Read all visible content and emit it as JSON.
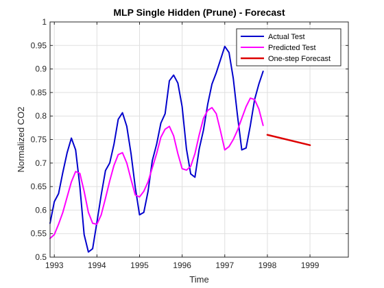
{
  "chart_data": {
    "type": "line",
    "title": "MLP Single Hidden (Prune) - Forecast",
    "xlabel": "Time",
    "ylabel": "Normalized CO2",
    "xlim": [
      1992.9,
      1999.9
    ],
    "ylim": [
      0.5,
      1.0
    ],
    "grid": true,
    "legend_position": "top-right",
    "xticks": [
      1993,
      1994,
      1995,
      1996,
      1997,
      1998,
      1999
    ],
    "xtick_labels": [
      "1993",
      "1994",
      "1995",
      "1996",
      "1997",
      "1998",
      "1999"
    ],
    "yticks": [
      0.5,
      0.55,
      0.6,
      0.65,
      0.7,
      0.75,
      0.8,
      0.85,
      0.9,
      0.95,
      1.0
    ],
    "ytick_labels": [
      "0.5",
      "0.55",
      "0.6",
      "0.65",
      "0.7",
      "0.75",
      "0.8",
      "0.85",
      "0.9",
      "0.95",
      "1"
    ],
    "series": [
      {
        "name": "Actual Test",
        "color": "#0000cc",
        "line_width": 2,
        "x": [
          1992.9,
          1993.0,
          1993.1,
          1993.2,
          1993.3,
          1993.4,
          1993.5,
          1993.6,
          1993.7,
          1993.8,
          1993.9,
          1994.0,
          1994.1,
          1994.2,
          1994.3,
          1994.4,
          1994.5,
          1994.6,
          1994.7,
          1994.8,
          1994.9,
          1995.0,
          1995.1,
          1995.2,
          1995.3,
          1995.4,
          1995.5,
          1995.6,
          1995.7,
          1995.8,
          1995.9,
          1996.0,
          1996.1,
          1996.2,
          1996.3,
          1996.4,
          1996.5,
          1996.6,
          1996.7,
          1996.8,
          1996.9,
          1997.0,
          1997.1,
          1997.2,
          1997.3,
          1997.4,
          1997.5,
          1997.6,
          1997.7,
          1997.8,
          1997.9
        ],
        "y": [
          0.572,
          0.618,
          0.635,
          0.68,
          0.722,
          0.753,
          0.728,
          0.65,
          0.548,
          0.511,
          0.518,
          0.575,
          0.632,
          0.684,
          0.7,
          0.74,
          0.793,
          0.807,
          0.778,
          0.72,
          0.648,
          0.59,
          0.595,
          0.64,
          0.705,
          0.74,
          0.785,
          0.805,
          0.875,
          0.887,
          0.87,
          0.82,
          0.73,
          0.677,
          0.67,
          0.73,
          0.77,
          0.825,
          0.868,
          0.892,
          0.92,
          0.948,
          0.935,
          0.88,
          0.8,
          0.728,
          0.732,
          0.78,
          0.835,
          0.868,
          0.895
        ]
      },
      {
        "name": "Predicted Test",
        "color": "#ff00ff",
        "line_width": 2,
        "x": [
          1992.9,
          1993.0,
          1993.1,
          1993.2,
          1993.3,
          1993.4,
          1993.5,
          1993.6,
          1993.7,
          1993.8,
          1993.9,
          1994.0,
          1994.1,
          1994.2,
          1994.3,
          1994.4,
          1994.5,
          1994.6,
          1994.7,
          1994.8,
          1994.9,
          1995.0,
          1995.1,
          1995.2,
          1995.3,
          1995.4,
          1995.5,
          1995.6,
          1995.7,
          1995.8,
          1995.9,
          1996.0,
          1996.1,
          1996.2,
          1996.3,
          1996.4,
          1996.5,
          1996.6,
          1996.7,
          1996.8,
          1996.9,
          1997.0,
          1997.1,
          1997.2,
          1997.3,
          1997.4,
          1997.5,
          1997.6,
          1997.7,
          1997.8,
          1997.9
        ],
        "y": [
          0.54,
          0.548,
          0.57,
          0.595,
          0.628,
          0.66,
          0.682,
          0.678,
          0.64,
          0.595,
          0.572,
          0.57,
          0.59,
          0.625,
          0.662,
          0.695,
          0.718,
          0.722,
          0.7,
          0.665,
          0.632,
          0.628,
          0.64,
          0.66,
          0.69,
          0.72,
          0.755,
          0.772,
          0.778,
          0.758,
          0.72,
          0.688,
          0.685,
          0.693,
          0.72,
          0.76,
          0.795,
          0.812,
          0.818,
          0.805,
          0.768,
          0.728,
          0.735,
          0.75,
          0.77,
          0.795,
          0.82,
          0.838,
          0.835,
          0.815,
          0.78
        ]
      },
      {
        "name": "One-step Forecast",
        "color": "#dd0000",
        "line_width": 2.5,
        "x": [
          1998.0,
          1999.0
        ],
        "y": [
          0.76,
          0.738
        ]
      }
    ]
  }
}
